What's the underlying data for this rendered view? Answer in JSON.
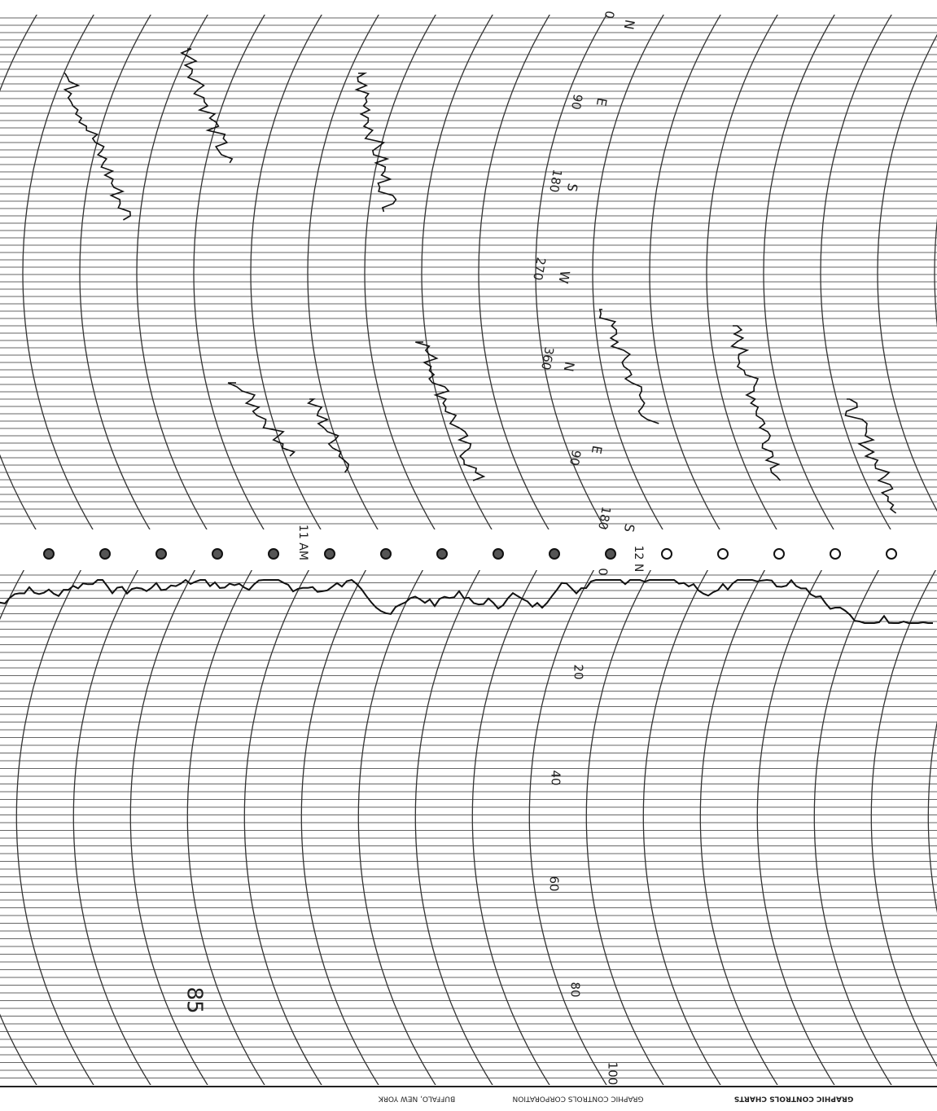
{
  "direction_scale": {
    "letters": [
      "N",
      "E",
      "S",
      "W",
      "N",
      "E",
      "S"
    ],
    "degrees": [
      "0",
      "90",
      "180",
      "270",
      "360",
      "90",
      "180"
    ]
  },
  "time_labels": [
    "11 AM",
    "12 N"
  ],
  "speed_scale": [
    "0",
    "20",
    "40",
    "60",
    "80",
    "100"
  ],
  "chart_number": "85",
  "footer": [
    "GRAPHIC CONTROLS CHARTS",
    "GRAPHIC CONTROLS CORPORATION",
    "BUFFALO, NEW YORK"
  ]
}
